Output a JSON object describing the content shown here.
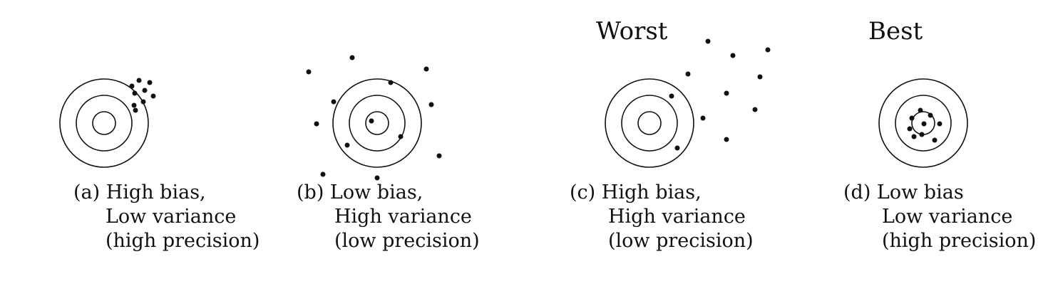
{
  "headings": {
    "worst": "Worst",
    "best": "Best"
  },
  "panels": [
    {
      "id": "a",
      "caption": [
        "(a) High bias,",
        "Low variance",
        "(high precision)"
      ],
      "bias": "high",
      "variance": "low",
      "points": 9
    },
    {
      "id": "b",
      "caption": [
        "(b) Low bias,",
        "High variance",
        "(low precision)"
      ],
      "bias": "low",
      "variance": "high",
      "points": 14
    },
    {
      "id": "c",
      "caption": [
        "(c) High bias,",
        "High variance",
        "(low precision)"
      ],
      "bias": "high",
      "variance": "high",
      "points": 12
    },
    {
      "id": "d",
      "caption": [
        "(d) Low bias",
        "Low variance",
        "(high precision)"
      ],
      "bias": "low",
      "variance": "low",
      "points": 9
    }
  ],
  "colors": {
    "ink": "#111111",
    "background": "#ffffff"
  }
}
